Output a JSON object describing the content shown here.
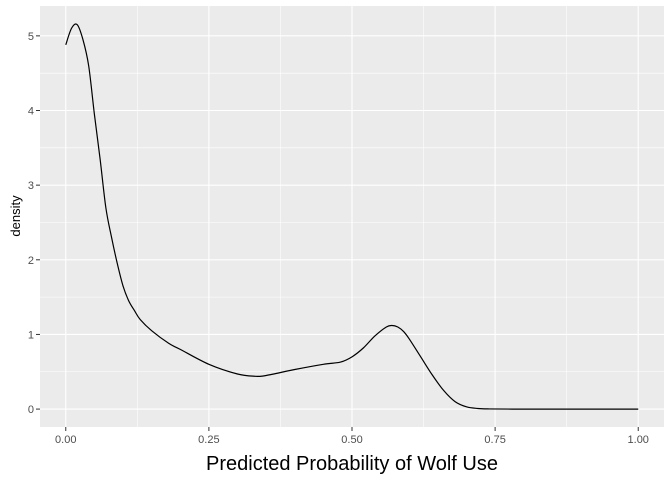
{
  "chart_data": {
    "type": "line",
    "title": "",
    "xlabel": "Predicted Probability of Wolf Use",
    "ylabel": "density",
    "xlim": [
      -0.045,
      1.045
    ],
    "ylim": [
      -0.24,
      5.4
    ],
    "x_ticks": [
      0.0,
      0.25,
      0.5,
      0.75,
      1.0
    ],
    "x_tick_labels": [
      "0.00",
      "0.25",
      "0.50",
      "0.75",
      "1.00"
    ],
    "y_ticks": [
      0,
      1,
      2,
      3,
      4,
      5
    ],
    "y_tick_labels": [
      "0",
      "1",
      "2",
      "3",
      "4",
      "5"
    ],
    "grid": true,
    "legend": "none",
    "series": [
      {
        "color": "#000000",
        "x": [
          0.0,
          0.01,
          0.02,
          0.03,
          0.04,
          0.05,
          0.06,
          0.07,
          0.08,
          0.09,
          0.1,
          0.11,
          0.12,
          0.13,
          0.15,
          0.18,
          0.2,
          0.25,
          0.3,
          0.33,
          0.35,
          0.4,
          0.45,
          0.48,
          0.5,
          0.52,
          0.54,
          0.56,
          0.57,
          0.58,
          0.59,
          0.6,
          0.62,
          0.64,
          0.66,
          0.68,
          0.7,
          0.72,
          0.74,
          0.78,
          0.85,
          0.9,
          1.0
        ],
        "y": [
          4.88,
          5.1,
          5.15,
          4.95,
          4.6,
          3.95,
          3.35,
          2.7,
          2.3,
          1.95,
          1.65,
          1.45,
          1.32,
          1.2,
          1.05,
          0.88,
          0.8,
          0.6,
          0.47,
          0.44,
          0.45,
          0.53,
          0.6,
          0.63,
          0.7,
          0.82,
          0.98,
          1.1,
          1.12,
          1.1,
          1.04,
          0.94,
          0.7,
          0.46,
          0.25,
          0.1,
          0.03,
          0.008,
          0.002,
          0.0,
          0.0,
          0.0,
          0.0
        ]
      }
    ]
  }
}
